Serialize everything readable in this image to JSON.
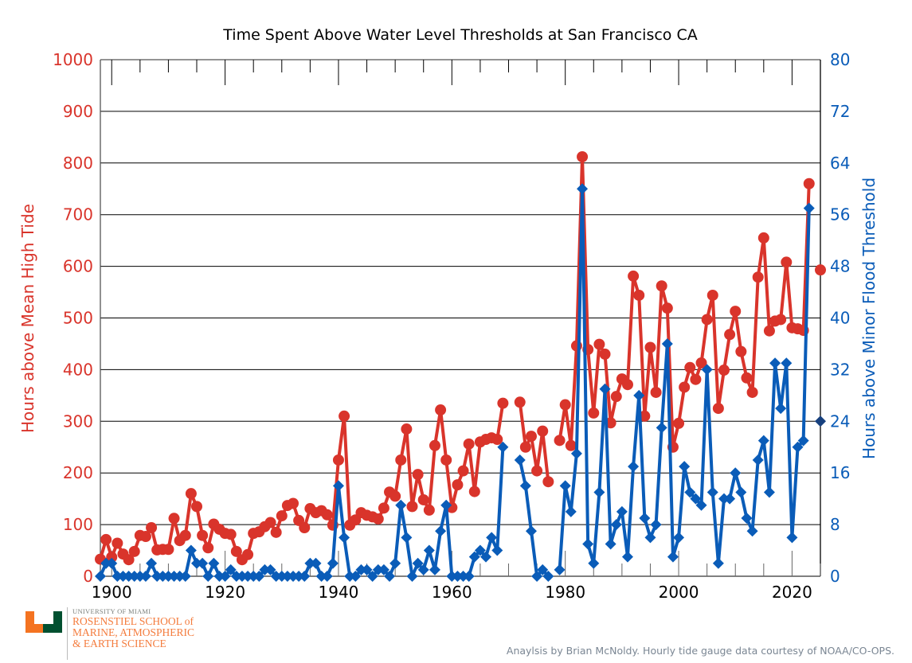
{
  "chart_data": {
    "type": "line",
    "title": "Time Spent Above Water Level Thresholds at San Francisco CA",
    "xlabel": "",
    "ylabel_left": "Hours above Mean High Tide",
    "ylabel_right": "Hours above Minor Flood Threshold",
    "xlim": [
      1898,
      2025
    ],
    "ylim_left": [
      0,
      1000
    ],
    "ylim_right": [
      0,
      80
    ],
    "x_ticks": [
      1900,
      1920,
      1940,
      1960,
      1980,
      2000,
      2020
    ],
    "y_ticks_left": [
      0,
      100,
      200,
      300,
      400,
      500,
      600,
      700,
      800,
      900,
      1000
    ],
    "y_ticks_right": [
      0,
      8,
      16,
      24,
      32,
      40,
      48,
      56,
      64,
      72,
      80
    ],
    "grid": "horizontal",
    "colors": {
      "left": "#d9342b",
      "right": "#0a5cb8",
      "partial_right": "#17407e"
    },
    "series": [
      {
        "name": "Hours above Mean High Tide",
        "axis": "left",
        "marker": "circle",
        "x": [
          1898,
          1899,
          1900,
          1901,
          1902,
          1903,
          1904,
          1905,
          1906,
          1907,
          1908,
          1909,
          1910,
          1911,
          1912,
          1913,
          1914,
          1915,
          1916,
          1917,
          1918,
          1919,
          1920,
          1921,
          1922,
          1923,
          1924,
          1925,
          1926,
          1927,
          1928,
          1929,
          1930,
          1931,
          1932,
          1933,
          1934,
          1935,
          1936,
          1937,
          1938,
          1939,
          1940,
          1941,
          1942,
          1943,
          1944,
          1945,
          1946,
          1947,
          1948,
          1949,
          1950,
          1951,
          1952,
          1953,
          1954,
          1955,
          1956,
          1957,
          1958,
          1959,
          1960,
          1961,
          1962,
          1963,
          1964,
          1965,
          1966,
          1967,
          1968,
          1969,
          null,
          1972,
          1973,
          1974,
          1975,
          1976,
          1977,
          null,
          1979,
          1980,
          1981,
          1982,
          1983,
          1984,
          1985,
          1986,
          1987,
          1988,
          1989,
          1990,
          1991,
          1992,
          1993,
          1994,
          1995,
          1996,
          1997,
          1998,
          1999,
          2000,
          2001,
          2002,
          2003,
          2004,
          2005,
          2006,
          2007,
          2008,
          2009,
          2010,
          2011,
          2012,
          2013,
          2014,
          2015,
          2016,
          2017,
          2018,
          2019,
          2020,
          2021,
          2022,
          2023
        ],
        "values": [
          33,
          71,
          37,
          64,
          43,
          32,
          48,
          79,
          77,
          94,
          51,
          52,
          52,
          112,
          69,
          79,
          160,
          135,
          79,
          55,
          101,
          91,
          83,
          81,
          48,
          32,
          42,
          83,
          86,
          96,
          104,
          85,
          117,
          137,
          141,
          108,
          94,
          131,
          123,
          127,
          119,
          99,
          225,
          310,
          99,
          109,
          123,
          118,
          115,
          111,
          132,
          163,
          155,
          225,
          285,
          135,
          197,
          148,
          128,
          253,
          322,
          225,
          133,
          177,
          204,
          256,
          164,
          260,
          265,
          268,
          265,
          335,
          null,
          337,
          250,
          271,
          204,
          281,
          183,
          null,
          263,
          332,
          253,
          446,
          812,
          439,
          316,
          449,
          430,
          297,
          348,
          382,
          371,
          581,
          544,
          310,
          443,
          356,
          562,
          519,
          250,
          296,
          366,
          404,
          381,
          413,
          497,
          544,
          325,
          399,
          468,
          513,
          435,
          384,
          356,
          579,
          655,
          475,
          494,
          497,
          608,
          481,
          479,
          476,
          760
        ]
      },
      {
        "name": "Hours above Minor Flood Threshold",
        "axis": "right",
        "marker": "diamond",
        "x": [
          1898,
          1899,
          1900,
          1901,
          1902,
          1903,
          1904,
          1905,
          1906,
          1907,
          1908,
          1909,
          1910,
          1911,
          1912,
          1913,
          1914,
          1915,
          1916,
          1917,
          1918,
          1919,
          1920,
          1921,
          1922,
          1923,
          1924,
          1925,
          1926,
          1927,
          1928,
          1929,
          1930,
          1931,
          1932,
          1933,
          1934,
          1935,
          1936,
          1937,
          1938,
          1939,
          1940,
          1941,
          1942,
          1943,
          1944,
          1945,
          1946,
          1947,
          1948,
          1949,
          1950,
          1951,
          1952,
          1953,
          1954,
          1955,
          1956,
          1957,
          1958,
          1959,
          1960,
          1961,
          1962,
          1963,
          1964,
          1965,
          1966,
          1967,
          1968,
          1969,
          null,
          1972,
          1973,
          1974,
          1975,
          1976,
          1977,
          null,
          1979,
          1980,
          1981,
          1982,
          1983,
          1984,
          1985,
          1986,
          1987,
          1988,
          1989,
          1990,
          1991,
          1992,
          1993,
          1994,
          1995,
          1996,
          1997,
          1998,
          1999,
          2000,
          2001,
          2002,
          2003,
          2004,
          2005,
          2006,
          2007,
          2008,
          2009,
          2010,
          2011,
          2012,
          2013,
          2014,
          2015,
          2016,
          2017,
          2018,
          2019,
          2020,
          2021,
          2022,
          2023
        ],
        "values": [
          0,
          2,
          2,
          0,
          0,
          0,
          0,
          0,
          0,
          2,
          0,
          0,
          0,
          0,
          0,
          0,
          4,
          2,
          2,
          0,
          2,
          0,
          0,
          1,
          0,
          0,
          0,
          0,
          0,
          1,
          1,
          0,
          0,
          0,
          0,
          0,
          0,
          2,
          2,
          0,
          0,
          2,
          14,
          6,
          0,
          0,
          1,
          1,
          0,
          1,
          1,
          0,
          2,
          11,
          6,
          0,
          2,
          1,
          4,
          1,
          7,
          11,
          0,
          0,
          0,
          0,
          3,
          4,
          3,
          6,
          4,
          20,
          null,
          18,
          14,
          7,
          0,
          1,
          0,
          null,
          1,
          14,
          10,
          19,
          60,
          5,
          2,
          13,
          29,
          5,
          8,
          10,
          3,
          17,
          28,
          9,
          6,
          8,
          23,
          36,
          3,
          6,
          17,
          13,
          12,
          11,
          32,
          13,
          2,
          12,
          12,
          16,
          13,
          9,
          7,
          18,
          21,
          13,
          33,
          26,
          33,
          6,
          20,
          21,
          57
        ]
      }
    ],
    "partial_year": {
      "x": 2025,
      "left_value": 593,
      "right_value": 24
    }
  },
  "footer": {
    "logo_university": "UNIVERSITY OF MIAMI",
    "logo_school_lines": [
      "ROSENSTIEL SCHOOL of",
      "MARINE, ATMOSPHERIC",
      "& EARTH SCIENCE"
    ],
    "credit": "Anaylsis by Brian McNoldy. Hourly tide gauge data courtesy of NOAA/CO-OPS."
  }
}
